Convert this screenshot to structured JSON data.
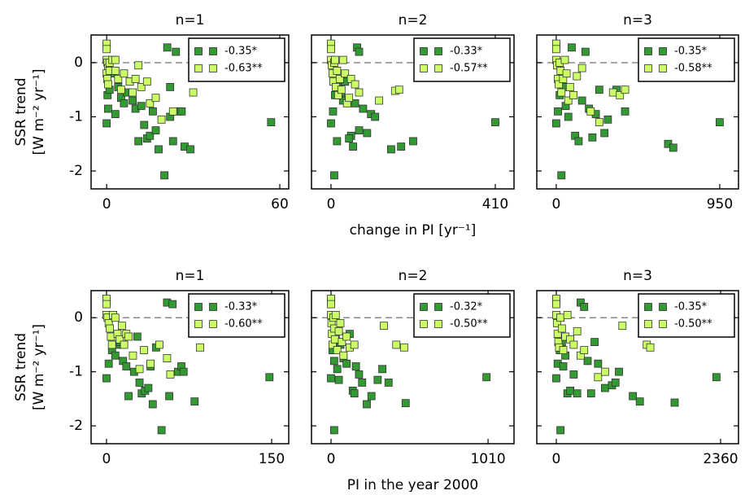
{
  "chart_data": [
    {
      "type": "scatter",
      "title": "n=1",
      "ylabel": [
        "SSR trend",
        "[W m⁻² yr⁻¹]"
      ],
      "xlim": [
        -5.4,
        63.1
      ],
      "xticks": [
        0,
        60
      ],
      "ylim": [
        -2.33,
        0.51
      ],
      "yticks": [
        -2,
        -1,
        0
      ],
      "reference_line": 0,
      "legend": "upper right",
      "series": [
        {
          "name": "-0.35*",
          "color": "#339933",
          "x": [
            0,
            0,
            0.5,
            0.3,
            1,
            2,
            3,
            4,
            5,
            6,
            7,
            8,
            9,
            10,
            11,
            12,
            13,
            14,
            15,
            16,
            17,
            18,
            20,
            21,
            22,
            22,
            23,
            24,
            25,
            26,
            27,
            29,
            57
          ],
          "values": [
            0.3,
            -1.12,
            -0.85,
            -0.6,
            -0.5,
            -0.2,
            -0.95,
            -0.45,
            -0.65,
            -0.75,
            -0.55,
            -0.35,
            -0.7,
            -0.85,
            -1.45,
            -0.8,
            -1.15,
            -1.4,
            -1.35,
            -0.9,
            -1.25,
            -1.6,
            -2.08,
            0.28,
            -0.45,
            -1.0,
            -1.45,
            0.2,
            -0.9,
            -0.9,
            -1.55,
            -1.6,
            -1.1
          ]
        },
        {
          "name": "-0.63**",
          "color": "#ccff66",
          "x": [
            0,
            0,
            0,
            0.3,
            0.5,
            0,
            0.2,
            0.5,
            1,
            1,
            2,
            3,
            3,
            4,
            5,
            6,
            8,
            9,
            10,
            11,
            12,
            14,
            15,
            17,
            19,
            23,
            30
          ],
          "values": [
            0.35,
            0.25,
            0.05,
            0,
            -0.1,
            -0.2,
            -0.3,
            -0.4,
            0,
            -0.15,
            0.05,
            0.05,
            -0.15,
            -0.3,
            -0.5,
            -0.2,
            -0.35,
            -0.55,
            -0.3,
            -0.05,
            -0.45,
            -0.35,
            -0.75,
            -0.65,
            -1.05,
            -0.9,
            -0.55
          ]
        }
      ]
    },
    {
      "type": "scatter",
      "title": "n=2",
      "xlabel": "change in PI [yr⁻¹]",
      "xlim": [
        -48.7,
        456.7
      ],
      "xticks": [
        0,
        410
      ],
      "ylim": [
        -2.33,
        0.51
      ],
      "yticks": [
        -2,
        -1,
        0
      ],
      "reference_line": 0,
      "legend": "upper right",
      "series": [
        {
          "name": "-0.33*",
          "color": "#339933",
          "x": [
            0,
            0,
            10,
            5,
            20,
            30,
            40,
            50,
            60,
            70,
            80,
            90,
            100,
            110,
            8,
            15,
            25,
            35,
            45,
            55,
            65,
            150,
            175,
            205,
            70,
            410
          ],
          "values": [
            0.3,
            -1.12,
            -0.6,
            -0.9,
            -0.45,
            -0.7,
            -0.3,
            -1.35,
            -0.75,
            -1.25,
            -0.85,
            -1.3,
            -0.95,
            -1.0,
            -2.08,
            -1.45,
            -0.55,
            -0.35,
            -1.4,
            -1.55,
            0.28,
            -1.6,
            -1.55,
            -1.45,
            0.2,
            -1.1
          ]
        },
        {
          "name": "-0.57**",
          "color": "#ccff66",
          "x": [
            0,
            0,
            0,
            2,
            4,
            6,
            8,
            10,
            12,
            15,
            18,
            22,
            26,
            30,
            35,
            40,
            45,
            50,
            60,
            70,
            120,
            160,
            170
          ],
          "values": [
            0.35,
            0.25,
            0.05,
            -0.05,
            -0.2,
            -0.35,
            0,
            0.05,
            -0.45,
            -0.15,
            -0.6,
            -0.3,
            -0.5,
            0.05,
            -0.2,
            -0.75,
            -0.65,
            -0.3,
            -0.4,
            -0.55,
            -0.7,
            -0.52,
            -0.5
          ]
        }
      ]
    },
    {
      "type": "scatter",
      "title": "n=3",
      "xlim": [
        -113,
        1059
      ],
      "xticks": [
        0,
        950
      ],
      "ylim": [
        -2.33,
        0.51
      ],
      "yticks": [
        -2,
        -1,
        0
      ],
      "reference_line": 0,
      "legend": "upper right",
      "series": [
        {
          "name": "-0.35*",
          "color": "#339933",
          "x": [
            0,
            0,
            10,
            20,
            30,
            40,
            55,
            70,
            90,
            110,
            130,
            150,
            170,
            190,
            210,
            230,
            250,
            280,
            300,
            350,
            400,
            650,
            680,
            950
          ],
          "values": [
            0.3,
            -1.12,
            -0.9,
            -0.6,
            -2.08,
            -0.45,
            -0.8,
            -1.0,
            0.28,
            -1.35,
            -1.45,
            -0.7,
            0.2,
            -0.85,
            -1.38,
            -0.95,
            -0.5,
            -1.3,
            -1.05,
            -0.5,
            -0.9,
            -1.5,
            -1.57,
            -1.1
          ]
        },
        {
          "name": "-0.58**",
          "color": "#ccff66",
          "x": [
            0,
            0,
            0,
            5,
            10,
            15,
            20,
            25,
            30,
            40,
            50,
            60,
            70,
            80,
            100,
            120,
            150,
            200,
            250,
            330,
            370,
            400
          ],
          "values": [
            0.35,
            0.25,
            0.05,
            -0.05,
            -0.3,
            -0.4,
            0.0,
            -0.15,
            -0.55,
            -0.3,
            0.05,
            -0.2,
            -0.7,
            -0.45,
            -0.6,
            -0.25,
            -0.1,
            -0.9,
            -1.1,
            -0.55,
            -0.6,
            -0.5
          ]
        }
      ]
    },
    {
      "type": "scatter",
      "title": "n=1",
      "ylabel": [
        "SSR trend",
        "[W m⁻² yr⁻¹]"
      ],
      "xlim": [
        -14,
        165.5
      ],
      "xticks": [
        0,
        150
      ],
      "ylim": [
        -2.33,
        0.5
      ],
      "yticks": [
        -2,
        -1,
        0
      ],
      "reference_line": 0,
      "legend": "upper right",
      "series": [
        {
          "name": "-0.33*",
          "color": "#339933",
          "x": [
            0,
            0,
            2,
            5,
            8,
            10,
            12,
            15,
            18,
            20,
            25,
            28,
            30,
            32,
            35,
            38,
            40,
            42,
            45,
            50,
            55,
            57,
            60,
            65,
            68,
            70,
            80,
            148
          ],
          "values": [
            0.3,
            -1.12,
            -0.85,
            -0.6,
            -0.7,
            -0.5,
            -0.45,
            -0.8,
            -0.9,
            -1.45,
            -1.0,
            -0.35,
            -1.2,
            -1.4,
            -1.35,
            -1.3,
            -0.9,
            -1.6,
            -0.55,
            -2.08,
            0.28,
            -1.45,
            0.25,
            -1.0,
            -0.9,
            -1.0,
            -1.55,
            -1.1
          ]
        },
        {
          "name": "-0.60**",
          "color": "#ccff66",
          "x": [
            0,
            0,
            0,
            1,
            2,
            3,
            4,
            5,
            6,
            8,
            10,
            12,
            14,
            16,
            18,
            20,
            24,
            30,
            34,
            40,
            48,
            55,
            58,
            85
          ],
          "values": [
            0.35,
            0.25,
            0.05,
            0,
            -0.1,
            -0.2,
            -0.35,
            -0.5,
            0.05,
            0.0,
            -0.3,
            -0.4,
            -0.15,
            -0.5,
            -0.3,
            -0.35,
            -0.7,
            -0.95,
            -0.6,
            -0.85,
            -0.5,
            -0.75,
            -1.05,
            -0.55
          ]
        }
      ]
    },
    {
      "type": "scatter",
      "title": "n=2",
      "xlabel": "PI in the year 2000",
      "xlim": [
        -125.6,
        1177
      ],
      "xticks": [
        0,
        1010
      ],
      "ylim": [
        -2.33,
        0.5
      ],
      "yticks": [
        -2,
        -1,
        0
      ],
      "reference_line": 0,
      "legend": "upper right",
      "series": [
        {
          "name": "-0.32*",
          "color": "#339933",
          "x": [
            0,
            0,
            10,
            20,
            30,
            40,
            50,
            60,
            80,
            100,
            120,
            140,
            150,
            160,
            180,
            200,
            230,
            260,
            300,
            330,
            370,
            480,
            1000,
            20
          ],
          "values": [
            0.3,
            -1.12,
            -0.6,
            -0.8,
            -0.4,
            -0.95,
            -1.15,
            -0.5,
            -0.75,
            -0.85,
            -0.3,
            -1.35,
            -1.4,
            -0.9,
            -1.05,
            -1.2,
            -1.6,
            -1.45,
            -1.15,
            -0.95,
            -1.2,
            -1.58,
            -1.1,
            -2.08
          ]
        },
        {
          "name": "-0.50**",
          "color": "#ccff66",
          "x": [
            0,
            0,
            0,
            3,
            6,
            10,
            15,
            20,
            25,
            30,
            40,
            50,
            60,
            70,
            80,
            100,
            120,
            150,
            340,
            420,
            470
          ],
          "values": [
            0.35,
            0.25,
            0.05,
            -0.1,
            -0.3,
            -0.5,
            0,
            -0.2,
            -0.4,
            0.05,
            -0.6,
            -0.25,
            -0.1,
            -0.45,
            -0.7,
            -0.35,
            -0.55,
            -0.5,
            -0.15,
            -0.5,
            -0.55
          ]
        }
      ]
    },
    {
      "type": "scatter",
      "title": "n=3",
      "xlim": [
        -280,
        2617
      ],
      "xticks": [
        0,
        2360
      ],
      "ylim": [
        -2.33,
        0.5
      ],
      "yticks": [
        -2,
        -1,
        0
      ],
      "reference_line": 0,
      "legend": "upper right",
      "series": [
        {
          "name": "-0.35*",
          "color": "#339933",
          "x": [
            0,
            0,
            20,
            50,
            80,
            100,
            130,
            160,
            200,
            250,
            300,
            350,
            400,
            450,
            500,
            550,
            600,
            700,
            800,
            850,
            900,
            1100,
            1200,
            1700,
            2300,
            60
          ],
          "values": [
            0.3,
            -1.12,
            -0.85,
            -0.6,
            -0.45,
            -0.9,
            -0.7,
            -1.4,
            -1.35,
            -1.05,
            -1.4,
            0.28,
            0.2,
            -0.8,
            -1.4,
            -0.45,
            -0.85,
            -1.3,
            -1.25,
            -1.2,
            -1.0,
            -1.45,
            -1.55,
            -1.57,
            -1.1,
            -2.08
          ]
        },
        {
          "name": "-0.50**",
          "color": "#ccff66",
          "x": [
            0,
            0,
            0,
            10,
            20,
            30,
            40,
            60,
            80,
            100,
            130,
            160,
            200,
            250,
            300,
            350,
            400,
            600,
            700,
            950,
            1300,
            1350
          ],
          "values": [
            0.35,
            0.25,
            0.05,
            -0.1,
            -0.3,
            -0.45,
            -0.55,
            0,
            -0.2,
            -0.6,
            -0.35,
            0.05,
            -0.4,
            -0.5,
            -0.25,
            -0.7,
            -0.6,
            -1.1,
            -1.0,
            -0.15,
            -0.5,
            -0.55
          ]
        }
      ]
    }
  ]
}
